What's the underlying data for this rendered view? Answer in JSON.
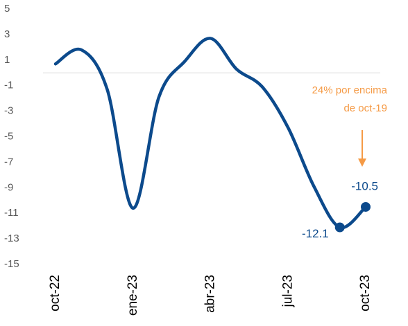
{
  "chart_data": {
    "type": "line",
    "categories": [
      "oct-22",
      null,
      null,
      "ene-23",
      null,
      null,
      "abr-23",
      null,
      null,
      "jul-23",
      null,
      null,
      "oct-23"
    ],
    "series": [
      {
        "color": "#0c4a8c",
        "values": [
          0.7,
          1.8,
          -1.3,
          -10.6,
          -1.9,
          0.9,
          2.7,
          0.3,
          -1.1,
          -4.3,
          -8.9,
          -12.1,
          -10.5
        ],
        "value_labels": [
          null,
          null,
          null,
          null,
          null,
          null,
          null,
          null,
          null,
          null,
          null,
          "-12.1",
          "-10.5"
        ]
      }
    ],
    "ylim": [
      -15,
      5
    ],
    "yticks": [
      5,
      3,
      1,
      -1,
      -3,
      -5,
      -7,
      -9,
      -11,
      -13,
      -15
    ],
    "annotation": {
      "lines": [
        "24% por encima",
        "de oct-19"
      ],
      "color": "#f59a45"
    }
  }
}
